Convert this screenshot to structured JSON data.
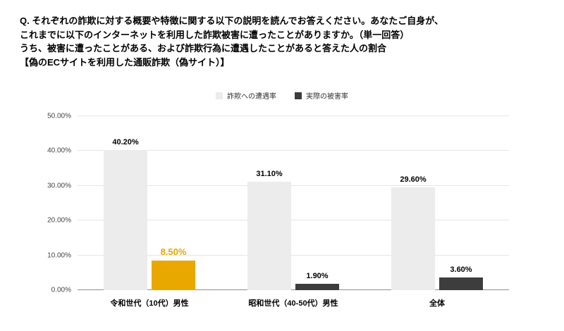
{
  "header": {
    "line1": "Q. それぞれの詐欺に対する概要や特徴に関する以下の説明を読んでお答えください。あなたご自身が、",
    "line2": "これまでに以下のインターネットを利用した詐欺被害に遭ったことがありますか。（単一回答）",
    "line3": "うち、被害に遭ったことがある、および詐欺行為に遭遇したことがあると答えた人の割合",
    "line4": "【偽のECサイトを利用した通販詐欺（偽サイト）】"
  },
  "chart_data": {
    "type": "bar",
    "title": "偽のECサイトを利用した通販詐欺（偽サイト）",
    "categories": [
      "令和世代（10代）男性",
      "昭和世代（40-50代）男性",
      "全体"
    ],
    "series": [
      {
        "name": "詐欺への遭遇率",
        "color": "#ececec",
        "values": [
          40.2,
          31.1,
          29.6
        ]
      },
      {
        "name": "実際の被害率",
        "color": "#3d3d3d",
        "values": [
          8.5,
          1.9,
          3.6
        ]
      }
    ],
    "value_labels": [
      [
        "40.20%",
        "31.10%",
        "29.60%"
      ],
      [
        "8.50%",
        "1.90%",
        "3.60%"
      ]
    ],
    "highlight": {
      "series": 1,
      "category": 0,
      "bar_color": "#e8a800",
      "label_color": "#e8a800"
    },
    "ylim": [
      0,
      50
    ],
    "ytick_step": 10,
    "ytick_labels": [
      "0.00%",
      "10.00%",
      "20.00%",
      "30.00%",
      "40.00%",
      "50.00%"
    ],
    "grid": true,
    "legend_position": "top"
  }
}
